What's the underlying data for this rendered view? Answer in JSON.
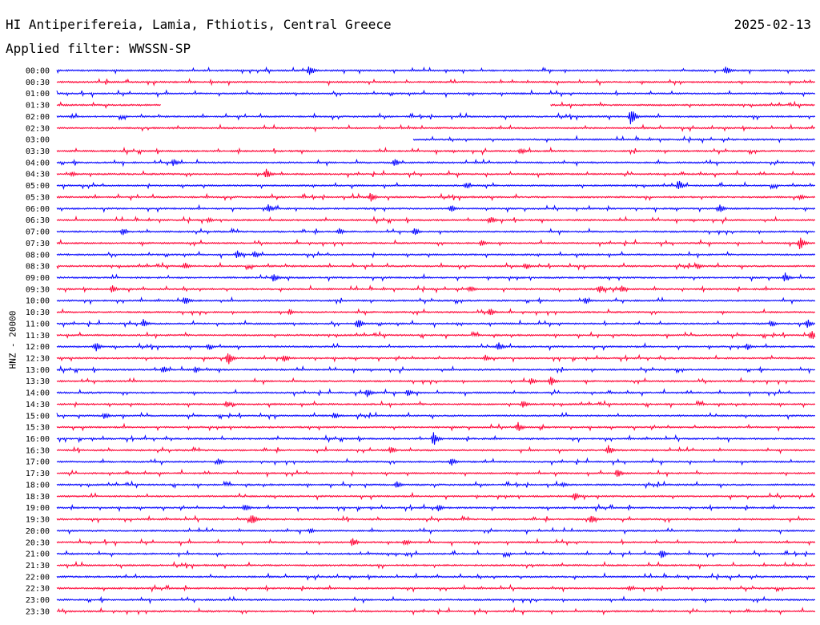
{
  "header": {
    "title": "HI Antiperifereia, Lamia, Fthiotis, Central Greece",
    "date": "2025-02-13",
    "filter": "Applied filter: WWSSN-SP"
  },
  "chart_data": {
    "type": "line",
    "title": "HI Antiperifereia, Lamia, Fthiotis, Central Greece",
    "ylabel": "HNZ - 20000",
    "xlabel": "",
    "colors": [
      "#0000ff",
      "#ff0033"
    ],
    "rows": [
      {
        "label": "00:00",
        "start": 0,
        "end": 1
      },
      {
        "label": "00:30",
        "start": 0,
        "end": 1
      },
      {
        "label": "01:00",
        "start": 0,
        "end": 1
      },
      {
        "label": "01:30",
        "start": 0,
        "end": 1,
        "gaps": [
          [
            0.138,
            0.651
          ]
        ]
      },
      {
        "label": "02:00",
        "start": 0,
        "end": 1
      },
      {
        "label": "02:30",
        "start": 0,
        "end": 1
      },
      {
        "label": "03:00",
        "start": 0.47,
        "end": 1
      },
      {
        "label": "03:30",
        "start": 0,
        "end": 1
      },
      {
        "label": "04:00",
        "start": 0,
        "end": 1
      },
      {
        "label": "04:30",
        "start": 0,
        "end": 1
      },
      {
        "label": "05:00",
        "start": 0,
        "end": 1
      },
      {
        "label": "05:30",
        "start": 0,
        "end": 1
      },
      {
        "label": "06:00",
        "start": 0,
        "end": 1
      },
      {
        "label": "06:30",
        "start": 0,
        "end": 1
      },
      {
        "label": "07:00",
        "start": 0,
        "end": 1
      },
      {
        "label": "07:30",
        "start": 0,
        "end": 1
      },
      {
        "label": "08:00",
        "start": 0,
        "end": 1
      },
      {
        "label": "08:30",
        "start": 0,
        "end": 1
      },
      {
        "label": "09:00",
        "start": 0,
        "end": 1
      },
      {
        "label": "09:30",
        "start": 0,
        "end": 1
      },
      {
        "label": "10:00",
        "start": 0,
        "end": 1
      },
      {
        "label": "10:30",
        "start": 0,
        "end": 1
      },
      {
        "label": "11:00",
        "start": 0,
        "end": 1
      },
      {
        "label": "11:30",
        "start": 0,
        "end": 1
      },
      {
        "label": "12:00",
        "start": 0,
        "end": 1
      },
      {
        "label": "12:30",
        "start": 0,
        "end": 1
      },
      {
        "label": "13:00",
        "start": 0,
        "end": 1
      },
      {
        "label": "13:30",
        "start": 0,
        "end": 1
      },
      {
        "label": "14:00",
        "start": 0,
        "end": 1
      },
      {
        "label": "14:30",
        "start": 0,
        "end": 1
      },
      {
        "label": "15:00",
        "start": 0,
        "end": 1
      },
      {
        "label": "15:30",
        "start": 0,
        "end": 1
      },
      {
        "label": "16:00",
        "start": 0,
        "end": 1
      },
      {
        "label": "16:30",
        "start": 0,
        "end": 1
      },
      {
        "label": "17:00",
        "start": 0,
        "end": 1
      },
      {
        "label": "17:30",
        "start": 0,
        "end": 1
      },
      {
        "label": "18:00",
        "start": 0,
        "end": 1
      },
      {
        "label": "18:30",
        "start": 0,
        "end": 1
      },
      {
        "label": "19:00",
        "start": 0,
        "end": 1
      },
      {
        "label": "19:30",
        "start": 0,
        "end": 1
      },
      {
        "label": "20:00",
        "start": 0,
        "end": 1
      },
      {
        "label": "20:30",
        "start": 0,
        "end": 1
      },
      {
        "label": "21:00",
        "start": 0,
        "end": 1
      },
      {
        "label": "21:30",
        "start": 0,
        "end": 1
      },
      {
        "label": "22:00",
        "start": 0,
        "end": 1
      },
      {
        "label": "22:30",
        "start": 0,
        "end": 1
      },
      {
        "label": "23:00",
        "start": 0,
        "end": 1
      },
      {
        "label": "23:30",
        "start": 0,
        "end": 1
      }
    ],
    "events": [
      {
        "row": "00:00",
        "x": 0.333,
        "amp": 8
      },
      {
        "row": "00:00",
        "x": 0.882,
        "amp": 7
      },
      {
        "row": "02:00",
        "x": 0.757,
        "amp": 13
      },
      {
        "row": "02:00",
        "x": 0.02,
        "amp": 3
      },
      {
        "row": "03:30",
        "x": 0.611,
        "amp": 5
      },
      {
        "row": "04:00",
        "x": 0.154,
        "amp": 5
      },
      {
        "row": "04:00",
        "x": 0.445,
        "amp": 6
      },
      {
        "row": "04:30",
        "x": 0.276,
        "amp": 8
      },
      {
        "row": "04:30",
        "x": 0.02,
        "amp": 4
      },
      {
        "row": "05:00",
        "x": 0.54,
        "amp": 5
      },
      {
        "row": "05:00",
        "x": 0.82,
        "amp": 8
      },
      {
        "row": "05:30",
        "x": 0.414,
        "amp": 7
      },
      {
        "row": "05:30",
        "x": 0.98,
        "amp": 4
      },
      {
        "row": "06:00",
        "x": 0.279,
        "amp": 6
      },
      {
        "row": "06:00",
        "x": 0.52,
        "amp": 6
      },
      {
        "row": "06:00",
        "x": 0.874,
        "amp": 6
      },
      {
        "row": "06:30",
        "x": 0.2,
        "amp": 4
      },
      {
        "row": "06:30",
        "x": 0.572,
        "amp": 6
      },
      {
        "row": "07:00",
        "x": 0.087,
        "amp": 5
      },
      {
        "row": "07:00",
        "x": 0.372,
        "amp": 5
      },
      {
        "row": "07:00",
        "x": 0.472,
        "amp": 5
      },
      {
        "row": "07:30",
        "x": 0.98,
        "amp": 9
      },
      {
        "row": "07:30",
        "x": 0.56,
        "amp": 5
      },
      {
        "row": "08:00",
        "x": 0.238,
        "amp": 6
      },
      {
        "row": "08:00",
        "x": 0.261,
        "amp": 6
      },
      {
        "row": "08:30",
        "x": 0.169,
        "amp": 5
      },
      {
        "row": "08:30",
        "x": 0.618,
        "amp": 5
      },
      {
        "row": "08:30",
        "x": 0.845,
        "amp": 4
      },
      {
        "row": "09:00",
        "x": 0.286,
        "amp": 7
      },
      {
        "row": "09:00",
        "x": 0.96,
        "amp": 7
      },
      {
        "row": "09:30",
        "x": 0.073,
        "amp": 6
      },
      {
        "row": "09:30",
        "x": 0.545,
        "amp": 5
      },
      {
        "row": "09:30",
        "x": 0.715,
        "amp": 6
      },
      {
        "row": "09:30",
        "x": 0.745,
        "amp": 5
      },
      {
        "row": "10:00",
        "x": 0.169,
        "amp": 7
      },
      {
        "row": "10:00",
        "x": 0.697,
        "amp": 5
      },
      {
        "row": "10:30",
        "x": 0.307,
        "amp": 4
      },
      {
        "row": "10:30",
        "x": 0.571,
        "amp": 6
      },
      {
        "row": "11:00",
        "x": 0.114,
        "amp": 6
      },
      {
        "row": "11:00",
        "x": 0.397,
        "amp": 8
      },
      {
        "row": "11:00",
        "x": 0.942,
        "amp": 5
      },
      {
        "row": "11:00",
        "x": 0.99,
        "amp": 6
      },
      {
        "row": "11:30",
        "x": 0.995,
        "amp": 8
      },
      {
        "row": "12:00",
        "x": 0.051,
        "amp": 7
      },
      {
        "row": "12:00",
        "x": 0.2,
        "amp": 5
      },
      {
        "row": "12:00",
        "x": 0.582,
        "amp": 7
      },
      {
        "row": "12:00",
        "x": 0.91,
        "amp": 5
      },
      {
        "row": "12:30",
        "x": 0.226,
        "amp": 9
      },
      {
        "row": "12:30",
        "x": 0.3,
        "amp": 6
      },
      {
        "row": "12:30",
        "x": 0.565,
        "amp": 5
      },
      {
        "row": "13:00",
        "x": 0.14,
        "amp": 6
      },
      {
        "row": "13:00",
        "x": 0.183,
        "amp": 5
      },
      {
        "row": "13:30",
        "x": 0.651,
        "amp": 7
      },
      {
        "row": "13:30",
        "x": 0.625,
        "amp": 5
      },
      {
        "row": "14:00",
        "x": 0.409,
        "amp": 6
      },
      {
        "row": "14:00",
        "x": 0.463,
        "amp": 5
      },
      {
        "row": "14:30",
        "x": 0.224,
        "amp": 5
      },
      {
        "row": "14:30",
        "x": 0.615,
        "amp": 6
      },
      {
        "row": "15:00",
        "x": 0.063,
        "amp": 5
      },
      {
        "row": "15:00",
        "x": 0.366,
        "amp": 5
      },
      {
        "row": "15:30",
        "x": 0.608,
        "amp": 7
      },
      {
        "row": "16:00",
        "x": 0.497,
        "amp": 10
      },
      {
        "row": "16:30",
        "x": 0.727,
        "amp": 8
      },
      {
        "row": "16:30",
        "x": 0.441,
        "amp": 5
      },
      {
        "row": "17:00",
        "x": 0.213,
        "amp": 5
      },
      {
        "row": "17:00",
        "x": 0.52,
        "amp": 6
      },
      {
        "row": "17:30",
        "x": 0.739,
        "amp": 6
      },
      {
        "row": "18:00",
        "x": 0.448,
        "amp": 5
      },
      {
        "row": "18:00",
        "x": 0.667,
        "amp": 4
      },
      {
        "row": "18:30",
        "x": 0.683,
        "amp": 6
      },
      {
        "row": "19:00",
        "x": 0.248,
        "amp": 6
      },
      {
        "row": "19:00",
        "x": 0.503,
        "amp": 5
      },
      {
        "row": "19:30",
        "x": 0.257,
        "amp": 9
      },
      {
        "row": "19:30",
        "x": 0.705,
        "amp": 7
      },
      {
        "row": "20:00",
        "x": 0.334,
        "amp": 4
      },
      {
        "row": "20:30",
        "x": 0.39,
        "amp": 6
      },
      {
        "row": "20:30",
        "x": 0.459,
        "amp": 5
      },
      {
        "row": "21:00",
        "x": 0.797,
        "amp": 7
      },
      {
        "row": "22:30",
        "x": 0.755,
        "amp": 4
      }
    ]
  }
}
